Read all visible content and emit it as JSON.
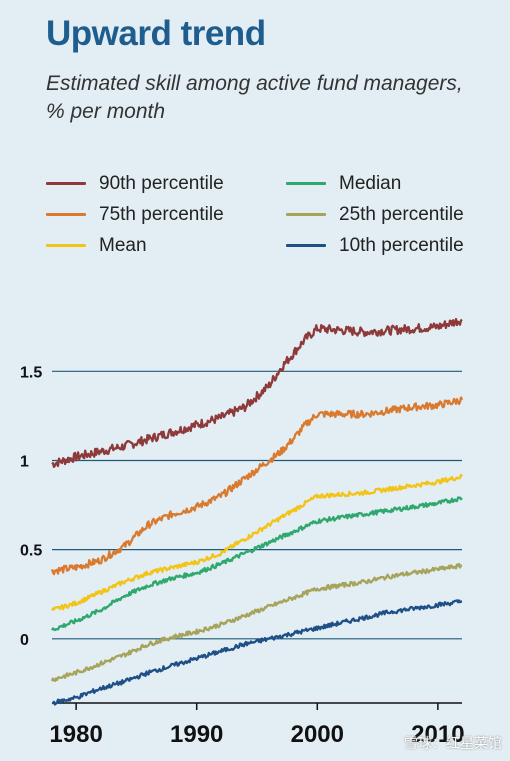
{
  "chart_data": {
    "type": "line",
    "title": "Upward trend",
    "subtitle": "Estimated skill among active fund managers, % per month",
    "xlim": [
      1978,
      2012
    ],
    "ylim": [
      -0.36,
      1.9
    ],
    "yticks": [
      {
        "value": 0,
        "label": "0"
      },
      {
        "value": 0.5,
        "label": "0.5"
      },
      {
        "value": 1,
        "label": "1"
      },
      {
        "value": 1.5,
        "label": "1.5"
      }
    ],
    "xticks": [
      {
        "value": 1980,
        "label": "1980"
      },
      {
        "value": 1990,
        "label": "1990"
      },
      {
        "value": 2000,
        "label": "2000"
      },
      {
        "value": 2010,
        "label": "2010"
      }
    ],
    "grid": "horizontal",
    "legend_position": "top",
    "series": [
      {
        "name": "90th percentile",
        "color": "#8e3a3a",
        "x": [
          1978,
          1980,
          1982,
          1984,
          1986,
          1988,
          1990,
          1992,
          1994,
          1996,
          1997,
          1998,
          1999,
          2000,
          2002,
          2004,
          2006,
          2008,
          2010,
          2012
        ],
        "values": [
          0.98,
          1.02,
          1.05,
          1.08,
          1.12,
          1.16,
          1.2,
          1.24,
          1.3,
          1.42,
          1.52,
          1.6,
          1.68,
          1.74,
          1.73,
          1.72,
          1.73,
          1.74,
          1.75,
          1.79
        ]
      },
      {
        "name": "75th percentile",
        "color": "#d97a2e",
        "x": [
          1978,
          1980,
          1982,
          1984,
          1986,
          1988,
          1990,
          1992,
          1994,
          1996,
          1997,
          1998,
          1999,
          2000,
          2002,
          2004,
          2006,
          2008,
          2010,
          2012
        ],
        "values": [
          0.38,
          0.4,
          0.44,
          0.52,
          0.64,
          0.7,
          0.74,
          0.8,
          0.9,
          1.0,
          1.05,
          1.12,
          1.2,
          1.26,
          1.26,
          1.26,
          1.28,
          1.3,
          1.31,
          1.34
        ]
      },
      {
        "name": "Mean",
        "color": "#f2c418",
        "x": [
          1978,
          1980,
          1982,
          1984,
          1986,
          1988,
          1990,
          1992,
          1994,
          1996,
          1998,
          2000,
          2002,
          2004,
          2006,
          2008,
          2010,
          2012
        ],
        "values": [
          0.16,
          0.2,
          0.26,
          0.32,
          0.37,
          0.4,
          0.43,
          0.48,
          0.56,
          0.64,
          0.72,
          0.8,
          0.81,
          0.82,
          0.84,
          0.86,
          0.88,
          0.91
        ]
      },
      {
        "name": "Median",
        "color": "#2fa86e",
        "x": [
          1978,
          1980,
          1982,
          1984,
          1986,
          1988,
          1990,
          1992,
          1994,
          1996,
          1998,
          2000,
          2002,
          2004,
          2006,
          2008,
          2010,
          2012
        ],
        "values": [
          0.05,
          0.1,
          0.16,
          0.24,
          0.3,
          0.34,
          0.37,
          0.42,
          0.48,
          0.54,
          0.6,
          0.66,
          0.68,
          0.7,
          0.72,
          0.74,
          0.76,
          0.79
        ]
      },
      {
        "name": "25th percentile",
        "color": "#a6a35a",
        "x": [
          1978,
          1980,
          1982,
          1984,
          1986,
          1988,
          1990,
          1992,
          1994,
          1996,
          1998,
          2000,
          2002,
          2004,
          2006,
          2008,
          2010,
          2012
        ],
        "values": [
          -0.23,
          -0.19,
          -0.14,
          -0.09,
          -0.03,
          0.01,
          0.04,
          0.08,
          0.13,
          0.18,
          0.23,
          0.28,
          0.3,
          0.32,
          0.35,
          0.37,
          0.39,
          0.41
        ]
      },
      {
        "name": "10th percentile",
        "color": "#1e4f86",
        "x": [
          1978,
          1980,
          1982,
          1984,
          1986,
          1988,
          1990,
          1992,
          1994,
          1996,
          1998,
          2000,
          2002,
          2004,
          2006,
          2008,
          2010,
          2012
        ],
        "values": [
          -0.36,
          -0.33,
          -0.28,
          -0.24,
          -0.19,
          -0.15,
          -0.11,
          -0.07,
          -0.03,
          0.0,
          0.03,
          0.06,
          0.09,
          0.12,
          0.15,
          0.17,
          0.19,
          0.21
        ]
      }
    ]
  },
  "watermark": "雪球：红星菜馆"
}
